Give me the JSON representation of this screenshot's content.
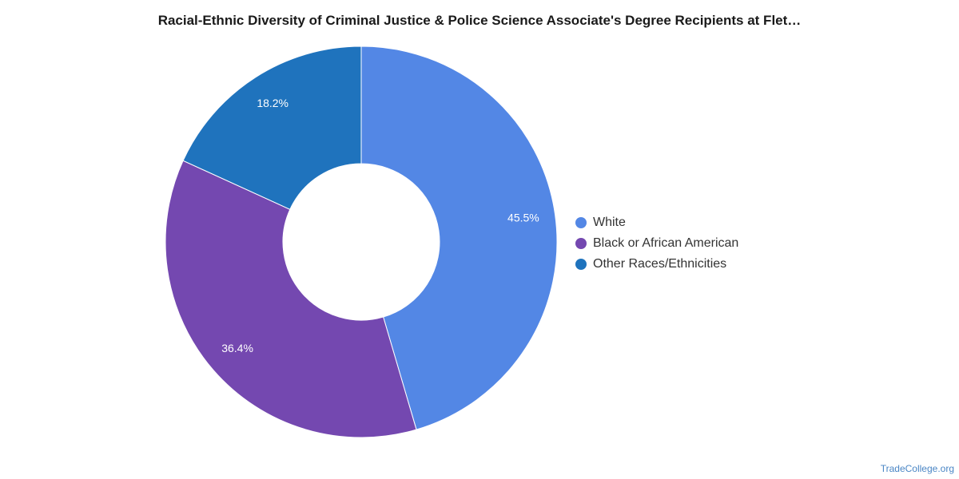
{
  "chart_data": {
    "type": "pie",
    "variant": "donut",
    "title": "Racial-Ethnic Diversity of Criminal Justice & Police Science Associate's Degree Recipients at Flet…",
    "categories": [
      "White",
      "Black or African American",
      "Other Races/Ethnicities"
    ],
    "values": [
      45.5,
      36.4,
      18.2
    ],
    "labels": [
      "45.5%",
      "36.4%",
      "18.2%"
    ],
    "colors": [
      "#5387e5",
      "#7448b0",
      "#1f73bd"
    ],
    "legend_position": "right"
  },
  "footer": {
    "source": "TradeCollege.org"
  }
}
